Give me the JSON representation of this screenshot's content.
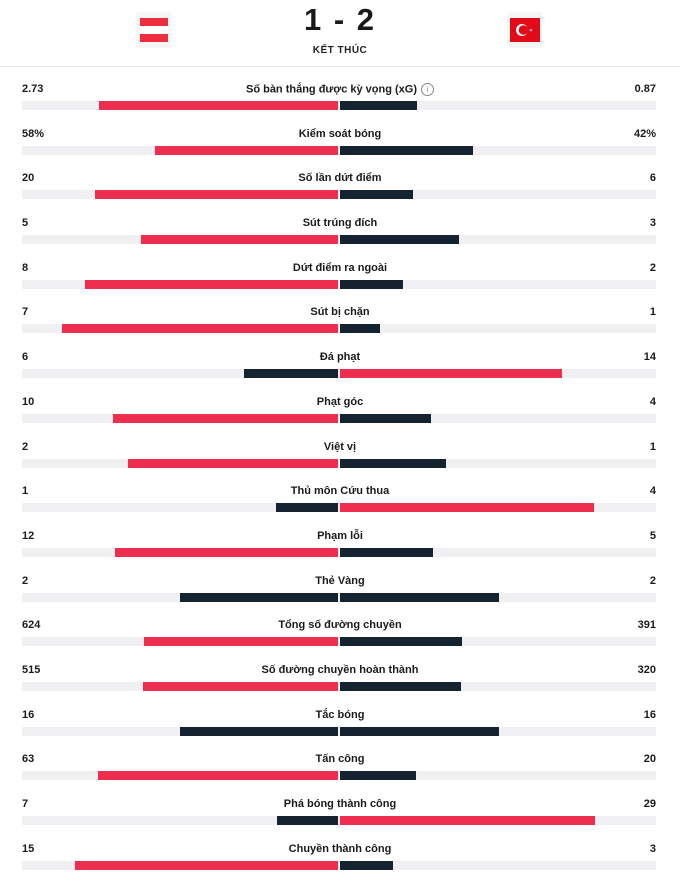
{
  "match": {
    "score": "1 - 2",
    "status": "KẾT THÚC",
    "home_flag_icon": "austria-flag-icon",
    "away_flag_icon": "turkey-flag-icon"
  },
  "colors": {
    "highlight": "#ee2e4e",
    "dark": "#152230",
    "track": "#f0f0f2"
  },
  "stats": [
    {
      "label": "Số bàn thắng được kỳ vọng (xG)",
      "home": "2.73",
      "away": "0.87",
      "home_val": 2.73,
      "away_val": 0.87,
      "info": true
    },
    {
      "label": "Kiểm soát bóng",
      "home": "58%",
      "away": "42%",
      "home_val": 58,
      "away_val": 42
    },
    {
      "label": "Số lần dứt điểm",
      "home": "20",
      "away": "6",
      "home_val": 20,
      "away_val": 6
    },
    {
      "label": "Sút trúng đích",
      "home": "5",
      "away": "3",
      "home_val": 5,
      "away_val": 3
    },
    {
      "label": "Dứt điểm ra ngoài",
      "home": "8",
      "away": "2",
      "home_val": 8,
      "away_val": 2
    },
    {
      "label": "Sút bị chặn",
      "home": "7",
      "away": "1",
      "home_val": 7,
      "away_val": 1
    },
    {
      "label": "Đá phạt",
      "home": "6",
      "away": "14",
      "home_val": 6,
      "away_val": 14
    },
    {
      "label": "Phạt góc",
      "home": "10",
      "away": "4",
      "home_val": 10,
      "away_val": 4
    },
    {
      "label": "Việt vị",
      "home": "2",
      "away": "1",
      "home_val": 2,
      "away_val": 1
    },
    {
      "label": "Thủ môn Cứu thua",
      "home": "1",
      "away": "4",
      "home_val": 1,
      "away_val": 4
    },
    {
      "label": "Phạm lỗi",
      "home": "12",
      "away": "5",
      "home_val": 12,
      "away_val": 5
    },
    {
      "label": "Thẻ Vàng",
      "home": "2",
      "away": "2",
      "home_val": 2,
      "away_val": 2
    },
    {
      "label": "Tổng số đường chuyền",
      "home": "624",
      "away": "391",
      "home_val": 624,
      "away_val": 391
    },
    {
      "label": "Số đường chuyền hoàn thành",
      "home": "515",
      "away": "320",
      "home_val": 515,
      "away_val": 320
    },
    {
      "label": "Tắc bóng",
      "home": "16",
      "away": "16",
      "home_val": 16,
      "away_val": 16
    },
    {
      "label": "Tấn công",
      "home": "63",
      "away": "20",
      "home_val": 63,
      "away_val": 20
    },
    {
      "label": "Phá bóng thành công",
      "home": "7",
      "away": "29",
      "home_val": 7,
      "away_val": 29
    },
    {
      "label": "Chuyền thành công",
      "home": "15",
      "away": "3",
      "home_val": 15,
      "away_val": 3
    }
  ]
}
